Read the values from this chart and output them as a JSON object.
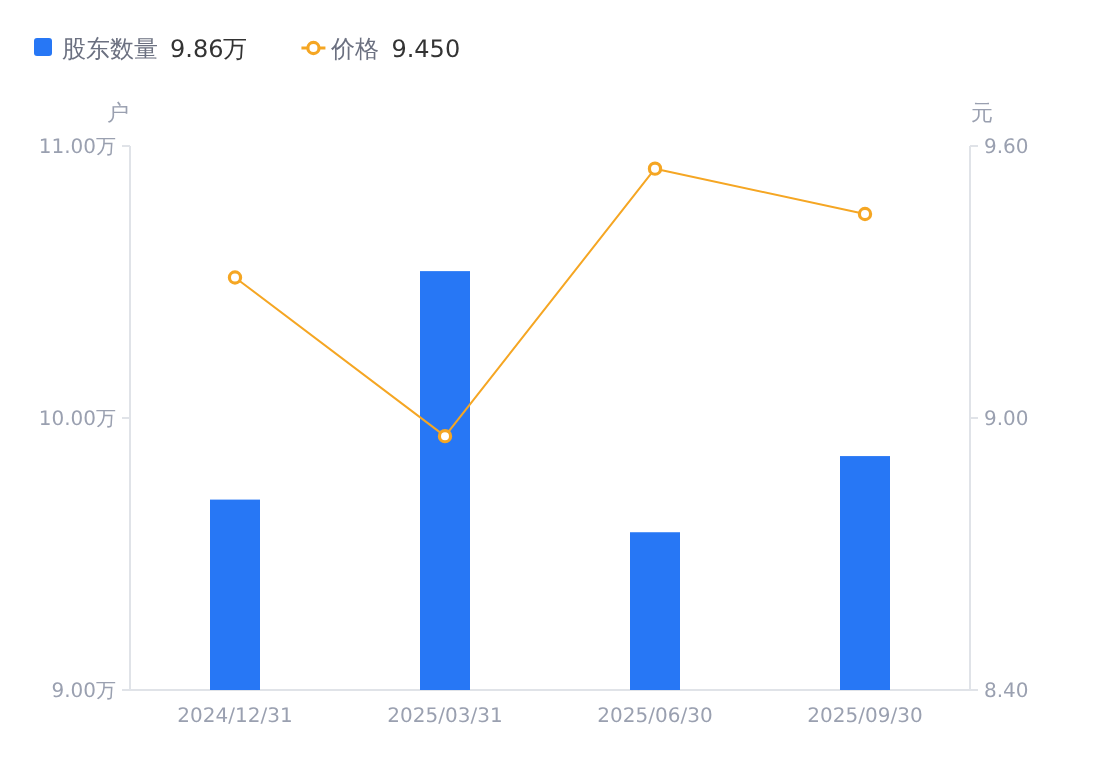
{
  "chart_data": {
    "type": "bar",
    "categories": [
      "2024/12/31",
      "2025/03/31",
      "2025/06/30",
      "2025/09/30"
    ],
    "series": [
      {
        "name": "股东数量",
        "color": "#2777f5",
        "values": [
          9.7,
          10.54,
          9.58,
          9.86
        ]
      },
      {
        "name": "价格",
        "type": "line",
        "axis": "y2",
        "color": "#f5a623",
        "marker": "circle",
        "values": [
          9.31,
          8.96,
          9.55,
          9.45
        ]
      }
    ],
    "ylabel": "户",
    "y2label": "元",
    "ylim": [
      9,
      11
    ],
    "yticks": [
      {
        "value": 9,
        "label": "9.00万"
      },
      {
        "value": 10,
        "label": "10.00万"
      },
      {
        "value": 11,
        "label": "11.00万"
      }
    ],
    "y2lim": [
      8.4,
      9.6
    ],
    "y2ticks": [
      {
        "value": 8.4,
        "label": "8.40"
      },
      {
        "value": 9,
        "label": "9.00"
      },
      {
        "value": 9.6,
        "label": "9.60"
      }
    ],
    "annotations": [
      "9.86万",
      "9.450"
    ],
    "legend": "top left"
  }
}
